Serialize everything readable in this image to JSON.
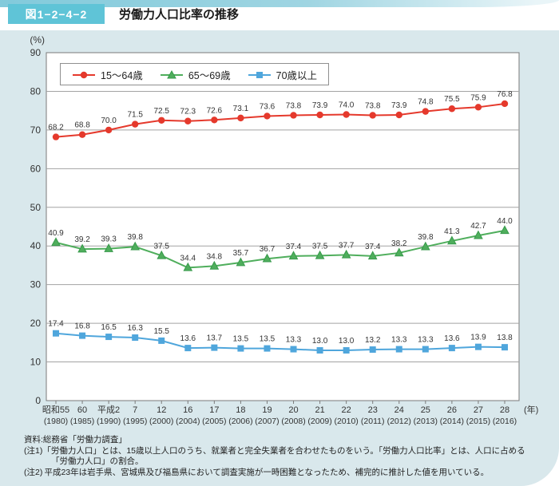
{
  "header": {
    "figure_label": "図1−2−4−2",
    "title": "労働力人口比率の推移"
  },
  "chart_data": {
    "type": "line",
    "title": "労働力人口比率の推移",
    "unit_label": "(%)",
    "year_label": "(年)",
    "ylim": [
      0,
      90
    ],
    "ytick_step": 10,
    "grid": true,
    "legend_position": "top-left",
    "categories_era": [
      "昭和55",
      "60",
      "平成2",
      "7",
      "12",
      "16",
      "17",
      "18",
      "19",
      "20",
      "21",
      "22",
      "23",
      "24",
      "25",
      "26",
      "27",
      "28"
    ],
    "categories_year": [
      "(1980)",
      "(1985)",
      "(1990)",
      "(1995)",
      "(2000)",
      "(2004)",
      "(2005)",
      "(2006)",
      "(2007)",
      "(2008)",
      "(2009)",
      "(2010)",
      "(2011)",
      "(2012)",
      "(2013)",
      "(2014)",
      "(2015)",
      "(2016)"
    ],
    "series": [
      {
        "name": "15〜64歳",
        "marker": "circle",
        "color": "#e5392c",
        "values": [
          68.2,
          68.8,
          70.0,
          71.5,
          72.5,
          72.3,
          72.6,
          73.1,
          73.6,
          73.8,
          73.9,
          74.0,
          73.8,
          73.9,
          74.8,
          75.5,
          75.9,
          76.8
        ]
      },
      {
        "name": "65〜69歳",
        "marker": "triangle",
        "color": "#4fae5c",
        "edge_color": "#379a4b",
        "values": [
          40.9,
          39.2,
          39.3,
          39.8,
          37.5,
          34.4,
          34.8,
          35.7,
          36.7,
          37.4,
          37.5,
          37.7,
          37.4,
          38.2,
          39.8,
          41.3,
          42.7,
          44.0
        ]
      },
      {
        "name": "70歳以上",
        "marker": "square",
        "color": "#4fa6dc",
        "values": [
          17.4,
          16.8,
          16.5,
          16.3,
          15.5,
          13.6,
          13.7,
          13.5,
          13.5,
          13.3,
          13.0,
          13.0,
          13.2,
          13.3,
          13.3,
          13.6,
          13.9,
          13.8
        ]
      }
    ]
  },
  "footnotes": {
    "source": "資料:総務省「労働力調査」",
    "note1_label": "(注1)",
    "note1": "「労働力人口」とは、15歳以上人口のうち、就業者と完全失業者を合わせたものをいう。「労働力人口比率」とは、人口に占める「労働力人口」の割合。",
    "note2_label": "(注2)",
    "note2": "平成23年は岩手県、宮城県及び福島県において調査実施が一時困難となったため、補完的に推計した値を用いている。"
  }
}
